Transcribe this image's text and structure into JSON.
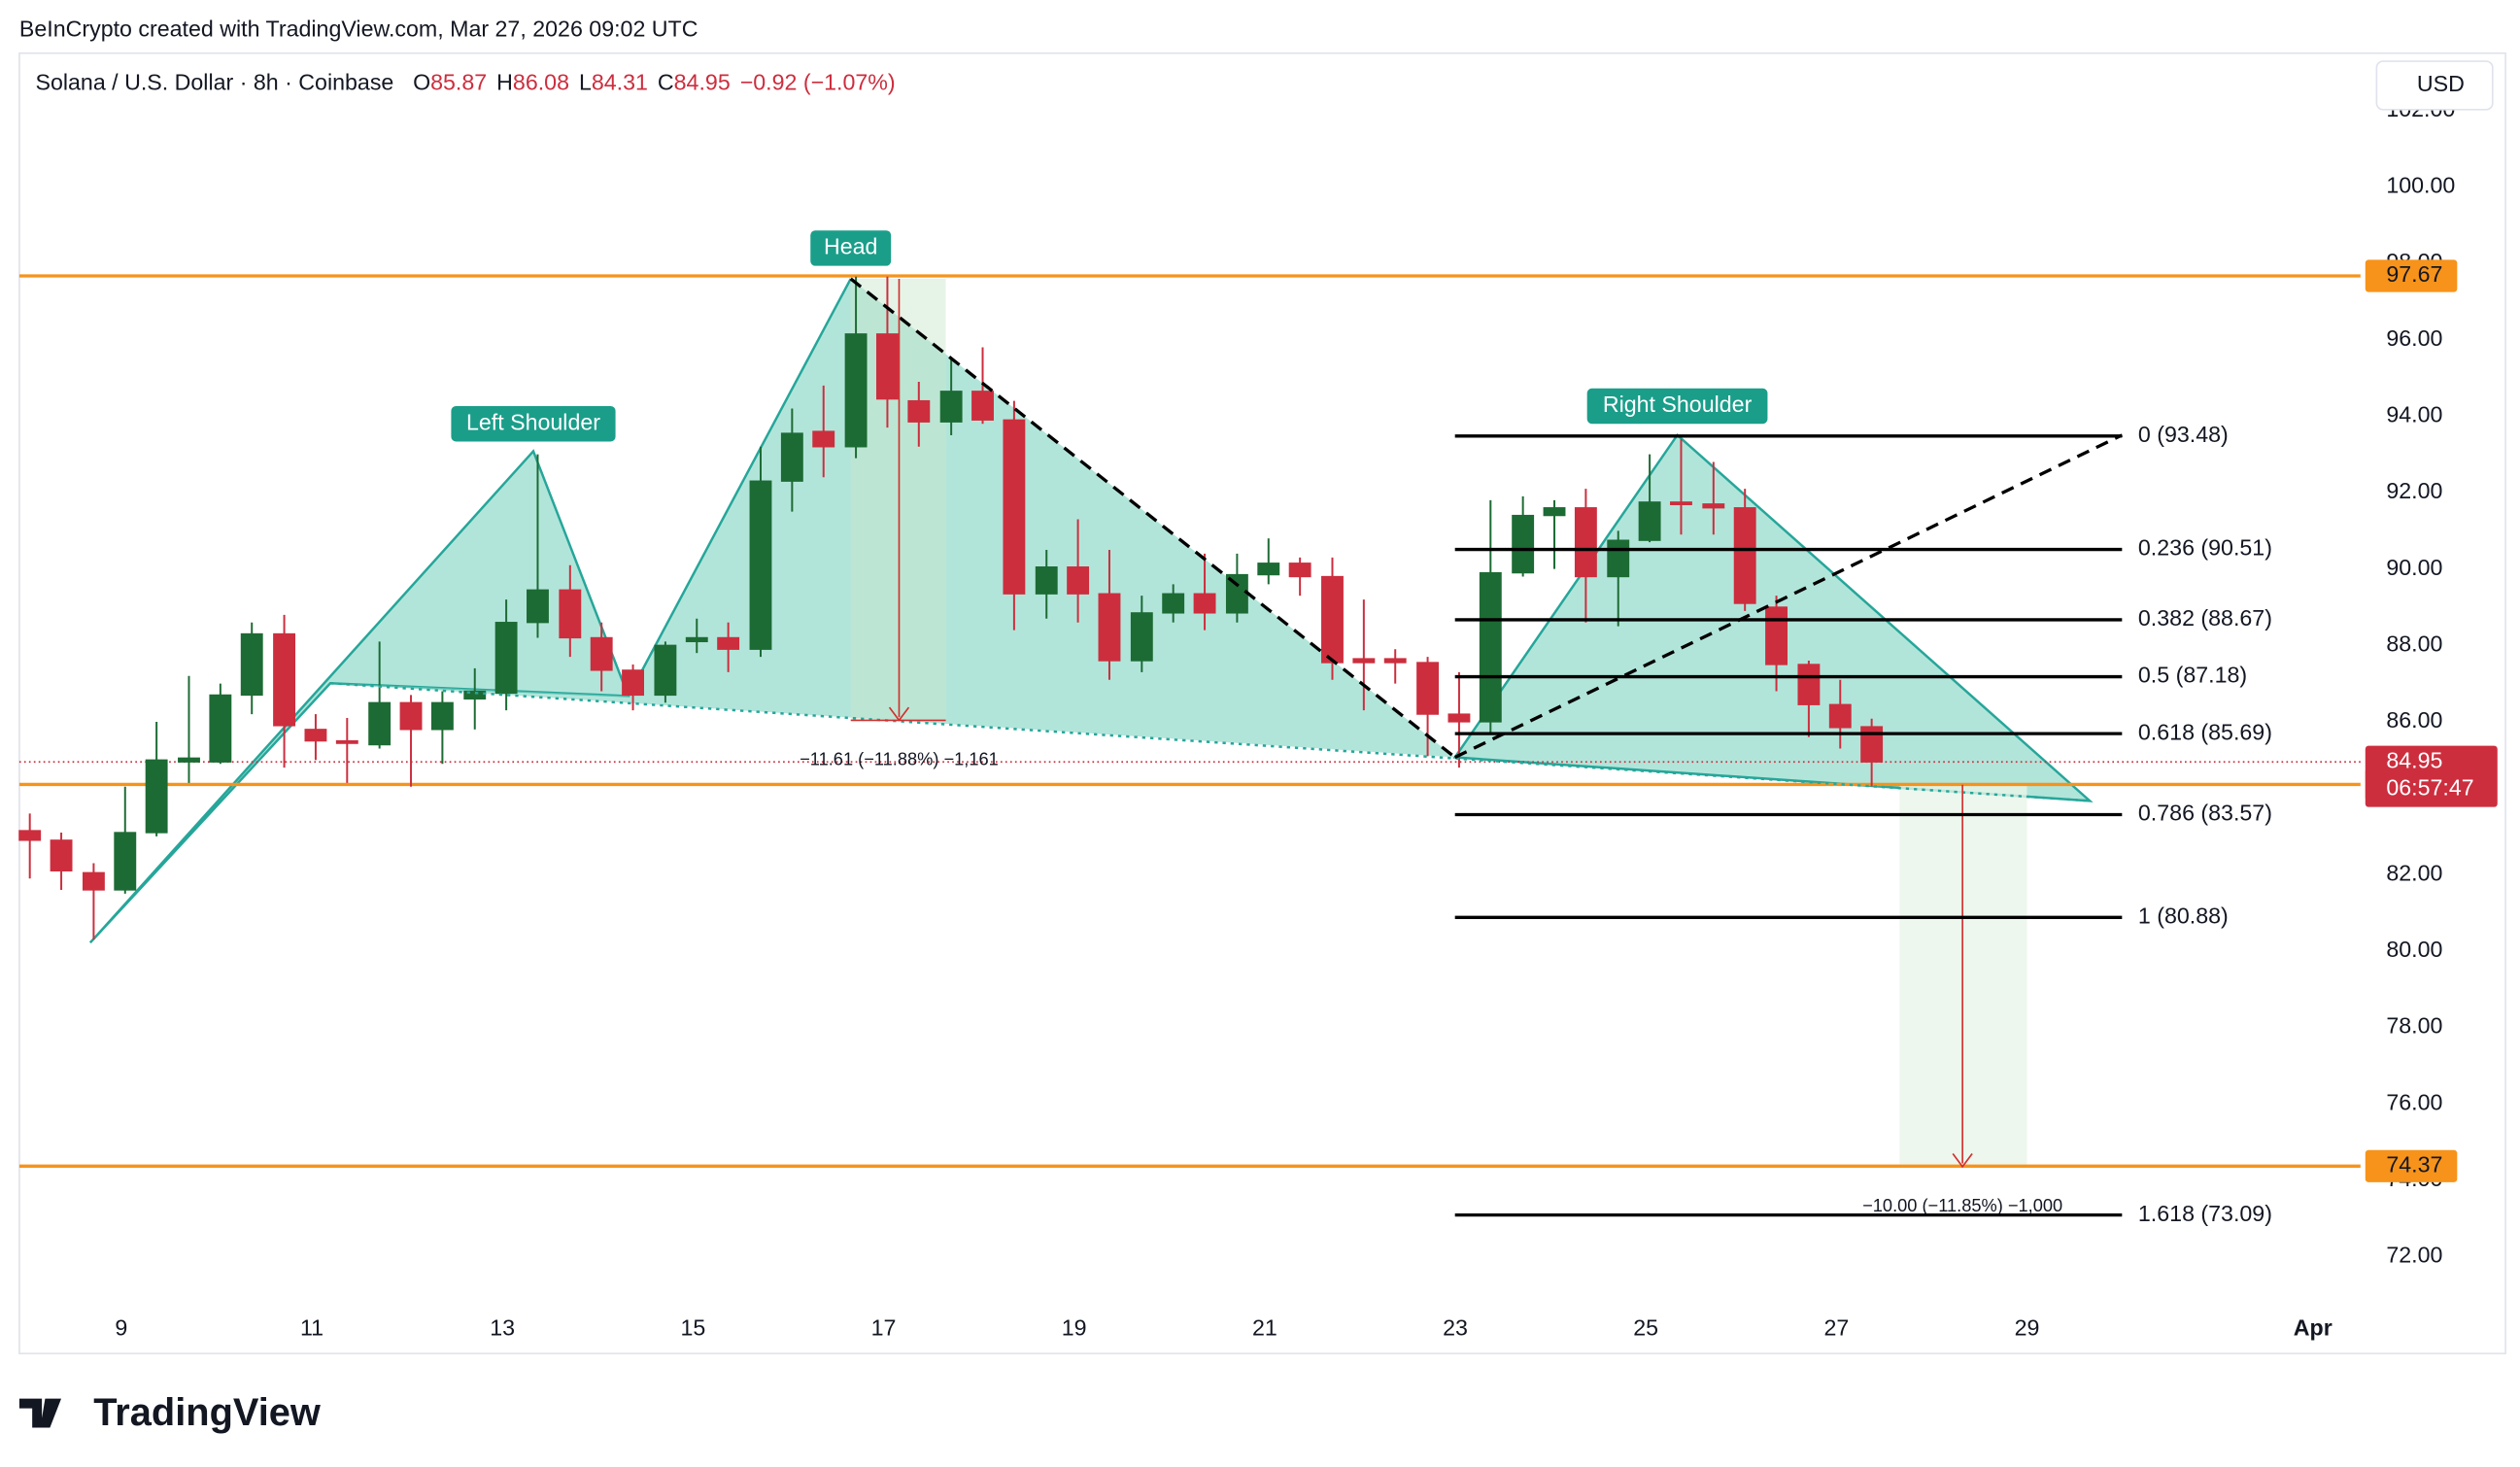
{
  "header": "BeInCrypto created with TradingView.com, Mar 27, 2026 09:02 UTC",
  "brand": "TradingView",
  "chart_data": {
    "type": "candlestick",
    "legend": {
      "name": "Solana / U.S. Dollar · 8h · Coinbase",
      "ohlc": [
        {
          "key": "O",
          "value": 85.87
        },
        {
          "key": "H",
          "value": 86.08
        },
        {
          "key": "L",
          "value": 84.31
        },
        {
          "key": "C",
          "value": 84.95
        }
      ],
      "change": "−0.92 (−1.07%)"
    },
    "currency": "USD",
    "up_color": "#1d6b34",
    "down_color": "#cc2e3e",
    "x": [
      8.04,
      8.37,
      8.71,
      9.04,
      9.37,
      9.71,
      10.04,
      10.37,
      10.71,
      11.04,
      11.37,
      11.71,
      12.04,
      12.37,
      12.71,
      13.04,
      13.37,
      13.71,
      14.04,
      14.37,
      14.71,
      15.04,
      15.37,
      15.71,
      16.04,
      16.37,
      16.71,
      17.04,
      17.37,
      17.71,
      18.04,
      18.37,
      18.71,
      19.04,
      19.37,
      19.71,
      20.04,
      20.37,
      20.71,
      21.04,
      21.37,
      21.71,
      22.04,
      22.37,
      22.71,
      23.04,
      23.37,
      23.71,
      24.04,
      24.37,
      24.71,
      25.04,
      25.37,
      25.71,
      26.04,
      26.37,
      26.71,
      27.04,
      27.37
    ],
    "open": [
      83.15,
      82.9,
      82.05,
      81.6,
      83.1,
      84.95,
      84.95,
      86.7,
      88.3,
      85.8,
      85.5,
      85.4,
      86.5,
      85.8,
      86.6,
      86.75,
      88.6,
      89.45,
      88.2,
      87.35,
      86.7,
      88.1,
      88.2,
      87.9,
      92.3,
      93.6,
      93.2,
      96.15,
      94.4,
      93.85,
      94.65,
      93.9,
      89.35,
      90.05,
      89.35,
      87.6,
      88.85,
      89.35,
      88.85,
      89.85,
      90.15,
      89.8,
      87.65,
      87.65,
      87.55,
      86.2,
      86.0,
      89.9,
      91.4,
      91.6,
      89.8,
      90.75,
      91.75,
      91.7,
      91.6,
      89.0,
      87.5,
      86.45,
      85.87
    ],
    "high": [
      83.6,
      83.1,
      82.3,
      84.3,
      86.0,
      87.2,
      87.0,
      88.6,
      88.8,
      86.2,
      86.1,
      88.1,
      86.7,
      86.8,
      87.4,
      89.2,
      93.0,
      90.1,
      88.6,
      87.5,
      88.1,
      88.7,
      88.6,
      93.2,
      94.2,
      94.8,
      97.65,
      97.65,
      94.9,
      95.5,
      95.8,
      94.4,
      90.5,
      91.3,
      90.5,
      89.3,
      89.6,
      90.4,
      90.4,
      90.8,
      90.3,
      90.3,
      89.2,
      87.9,
      87.7,
      87.3,
      91.8,
      91.9,
      91.8,
      92.1,
      91.0,
      93.0,
      93.4,
      92.8,
      92.1,
      89.3,
      87.6,
      87.1,
      86.08
    ],
    "low": [
      81.9,
      81.6,
      80.3,
      81.5,
      83.0,
      84.4,
      84.9,
      86.2,
      84.8,
      85.0,
      84.4,
      85.3,
      84.3,
      84.9,
      85.8,
      86.3,
      88.2,
      87.7,
      86.8,
      86.3,
      86.5,
      87.8,
      87.3,
      87.7,
      91.5,
      92.4,
      92.9,
      93.7,
      93.2,
      93.5,
      93.8,
      88.4,
      88.7,
      88.6,
      87.1,
      87.3,
      88.6,
      88.4,
      88.6,
      89.6,
      89.3,
      87.1,
      86.3,
      87.0,
      85.1,
      84.8,
      85.7,
      89.8,
      90.0,
      88.6,
      88.5,
      90.7,
      90.9,
      90.9,
      88.9,
      86.8,
      85.6,
      85.3,
      84.31
    ],
    "close": [
      82.9,
      82.1,
      81.6,
      83.1,
      85.0,
      85.05,
      86.7,
      88.3,
      85.9,
      85.5,
      85.45,
      86.5,
      85.8,
      86.5,
      86.8,
      88.6,
      89.45,
      88.2,
      87.35,
      86.7,
      88.0,
      88.2,
      87.9,
      92.3,
      93.55,
      93.2,
      96.15,
      94.45,
      93.85,
      94.65,
      93.9,
      89.35,
      90.05,
      89.35,
      87.6,
      88.85,
      89.35,
      88.85,
      89.85,
      90.15,
      89.8,
      87.55,
      87.55,
      87.55,
      86.2,
      86.0,
      89.9,
      91.4,
      91.6,
      89.8,
      90.75,
      91.75,
      91.7,
      91.6,
      89.1,
      87.5,
      86.45,
      85.85,
      84.95
    ],
    "xlim": [
      7.93,
      32.5
    ],
    "xticks": [
      9,
      11,
      13,
      15,
      17,
      19,
      21,
      23,
      25,
      27,
      29,
      {
        "value": 32,
        "label": "Apr"
      }
    ],
    "ylim": [
      70.73,
      103.5
    ],
    "yticks": [
      {
        "value": 72,
        "label": "72.00"
      },
      {
        "value": 74,
        "label": "74.00"
      },
      {
        "value": 76,
        "label": "76.00"
      },
      {
        "value": 78,
        "label": "78.00"
      },
      {
        "value": 80,
        "label": "80.00"
      },
      {
        "value": 82,
        "label": "82.00"
      },
      {
        "value": 84,
        "label": "84.00"
      },
      {
        "value": 86,
        "label": "86.00"
      },
      {
        "value": 88,
        "label": "88.00"
      },
      {
        "value": 90,
        "label": "90.00"
      },
      {
        "value": 92,
        "label": "92.00"
      },
      {
        "value": 94,
        "label": "94.00"
      },
      {
        "value": 96,
        "label": "96.00"
      },
      {
        "value": 98,
        "label": "98.00"
      },
      {
        "value": 100,
        "label": "100.00"
      },
      {
        "value": 102,
        "label": "102.00"
      }
    ],
    "grid": false,
    "price_lines": [
      {
        "value": 97.67,
        "color": "#f7931a"
      },
      {
        "value": 84.36,
        "color": "#f7931a"
      },
      {
        "value": 74.37,
        "color": "#f7931a"
      }
    ],
    "current_price": {
      "value": 84.95,
      "countdown": "06:57:47",
      "color": "#cc2e3e"
    },
    "fib_levels": [
      {
        "value": 93.48,
        "label": "0 (93.48)"
      },
      {
        "value": 90.51,
        "label": "0.236 (90.51)"
      },
      {
        "value": 88.67,
        "label": "0.382 (88.67)"
      },
      {
        "value": 87.18,
        "label": "0.5 (87.18)"
      },
      {
        "value": 85.69,
        "label": "0.618 (85.69)"
      },
      {
        "value": 83.57,
        "label": "0.786 (83.57)"
      },
      {
        "value": 80.88,
        "label": "1 (80.88)"
      },
      {
        "value": 73.09,
        "label": "1.618 (73.09)"
      }
    ],
    "annotations": {
      "left_shoulder": "Left Shoulder",
      "head": "Head",
      "right_shoulder": "Right Shoulder",
      "head_measure": "−11.61 (−11.88%) −1,161",
      "target_measure": "−10.00 (−11.85%) −1,000"
    }
  }
}
